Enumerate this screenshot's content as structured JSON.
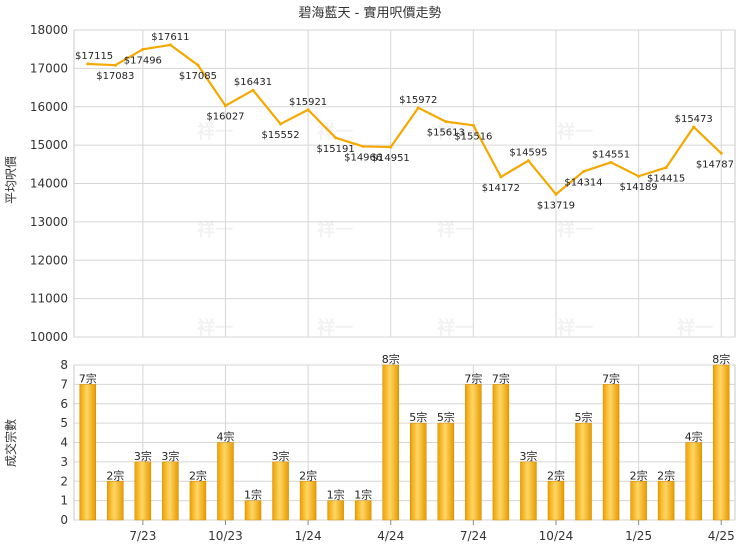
{
  "chart_data": [
    {
      "type": "line",
      "title": "碧海藍天 - 實用呎價走勢",
      "ylabel": "平均呎價",
      "ylim": [
        10000,
        18000
      ],
      "yticks": [
        "10000",
        "11000",
        "12000",
        "13000",
        "14000",
        "15000",
        "16000",
        "17000",
        "18000"
      ],
      "grid": true,
      "color": "#f5a800",
      "values": [
        17115,
        17083,
        17496,
        17611,
        17085,
        16027,
        16431,
        15552,
        15921,
        15191,
        14966,
        14951,
        15972,
        15613,
        15516,
        14172,
        14595,
        13719,
        14314,
        14551,
        14189,
        14415,
        15473,
        14787
      ],
      "value_labels": [
        "$17115",
        "$17083",
        "$17496",
        "$17611",
        "$17085",
        "$16027",
        "$16431",
        "$15552",
        "$15921",
        "$15191",
        "$14966",
        "$14951",
        "$15972",
        "$15613",
        "$15516",
        "$14172",
        "$14595",
        "$13719",
        "$14314",
        "$14551",
        "$14189",
        "$14415",
        "$15473",
        "$14787"
      ]
    },
    {
      "type": "bar",
      "ylabel": "成交宗數",
      "ylim": [
        0,
        8
      ],
      "yticks": [
        "0",
        "1",
        "2",
        "3",
        "4",
        "5",
        "6",
        "7",
        "8"
      ],
      "grid": true,
      "color": "#f3ad1c",
      "values": [
        7,
        2,
        3,
        3,
        2,
        4,
        1,
        3,
        2,
        1,
        1,
        8,
        5,
        5,
        7,
        7,
        3,
        2,
        5,
        7,
        2,
        2,
        4,
        8
      ],
      "value_labels": [
        "7宗",
        "2宗",
        "3宗",
        "3宗",
        "2宗",
        "4宗",
        "1宗",
        "3宗",
        "2宗",
        "1宗",
        "1宗",
        "8宗",
        "5宗",
        "5宗",
        "7宗",
        "7宗",
        "3宗",
        "2宗",
        "5宗",
        "7宗",
        "2宗",
        "2宗",
        "4宗",
        "8宗"
      ],
      "x_tick_labels": [
        "7/23",
        "10/23",
        "1/24",
        "4/24",
        "7/24",
        "10/24",
        "1/25",
        "4/25"
      ]
    }
  ],
  "watermark": "祥一"
}
